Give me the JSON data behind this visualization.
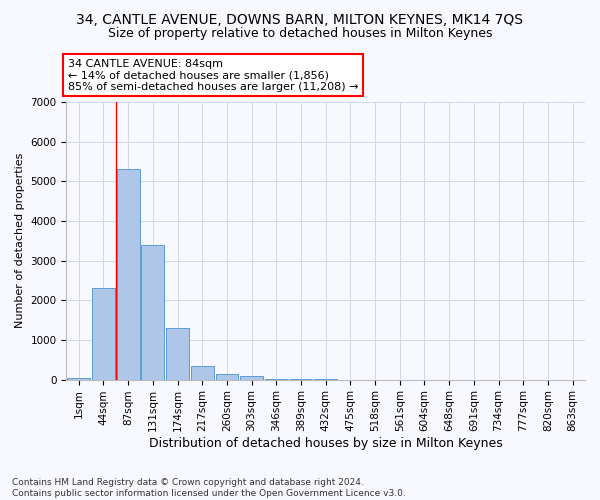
{
  "title1": "34, CANTLE AVENUE, DOWNS BARN, MILTON KEYNES, MK14 7QS",
  "title2": "Size of property relative to detached houses in Milton Keynes",
  "xlabel": "Distribution of detached houses by size in Milton Keynes",
  "ylabel": "Number of detached properties",
  "bar_labels": [
    "1sqm",
    "44sqm",
    "87sqm",
    "131sqm",
    "174sqm",
    "217sqm",
    "260sqm",
    "303sqm",
    "346sqm",
    "389sqm",
    "432sqm",
    "475sqm",
    "518sqm",
    "561sqm",
    "604sqm",
    "648sqm",
    "691sqm",
    "734sqm",
    "777sqm",
    "820sqm",
    "863sqm"
  ],
  "bar_values": [
    50,
    2300,
    5300,
    3400,
    1300,
    350,
    150,
    100,
    20,
    5,
    3,
    2,
    1,
    0,
    0,
    0,
    0,
    0,
    0,
    0,
    0
  ],
  "bar_color": "#aec6e8",
  "bar_edge_color": "#5b9bd5",
  "ylim": [
    0,
    7000
  ],
  "yticks": [
    0,
    1000,
    2000,
    3000,
    4000,
    5000,
    6000,
    7000
  ],
  "red_line_x": 1.5,
  "annotation_box_text": "34 CANTLE AVENUE: 84sqm\n← 14% of detached houses are smaller (1,856)\n85% of semi-detached houses are larger (11,208) →",
  "footnote": "Contains HM Land Registry data © Crown copyright and database right 2024.\nContains public sector information licensed under the Open Government Licence v3.0.",
  "bg_color": "#f8f8ff",
  "grid_color": "#d0d8e8",
  "title1_fontsize": 10,
  "title2_fontsize": 9,
  "xlabel_fontsize": 9,
  "ylabel_fontsize": 8,
  "annotation_fontsize": 8,
  "footnote_fontsize": 6.5,
  "tick_fontsize": 7.5
}
